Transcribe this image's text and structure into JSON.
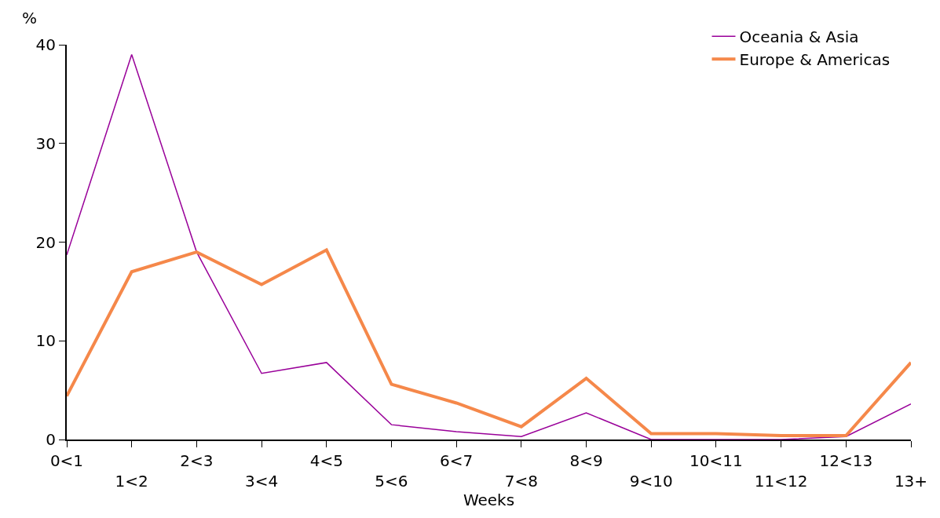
{
  "chart_data": {
    "type": "line",
    "xlabel": "Weeks",
    "ylabel": "%",
    "categories": [
      "0<1",
      "1<2",
      "2<3",
      "3<4",
      "4<5",
      "5<6",
      "6<7",
      "7<8",
      "8<9",
      "9<10",
      "10<11",
      "11<12",
      "12<13",
      "13+"
    ],
    "series": [
      {
        "name": "Oceania & Asia",
        "color": "#990099",
        "values": [
          18.7,
          39,
          19,
          6.7,
          7.8,
          1.5,
          0.8,
          0.3,
          2.7,
          0,
          0,
          0,
          0.3,
          3.6
        ]
      },
      {
        "name": "Europe & Americas",
        "color": "#f5884a",
        "values": [
          4.4,
          17,
          19,
          15.7,
          19.2,
          5.6,
          3.7,
          1.3,
          6.2,
          0.6,
          0.6,
          0.4,
          0.4,
          7.8
        ]
      }
    ],
    "ylim": [
      0,
      40
    ],
    "yticks": [
      0,
      10,
      20,
      30,
      40
    ],
    "grid": false,
    "legend": "top right",
    "marker": "none",
    "line_style": "solid"
  }
}
